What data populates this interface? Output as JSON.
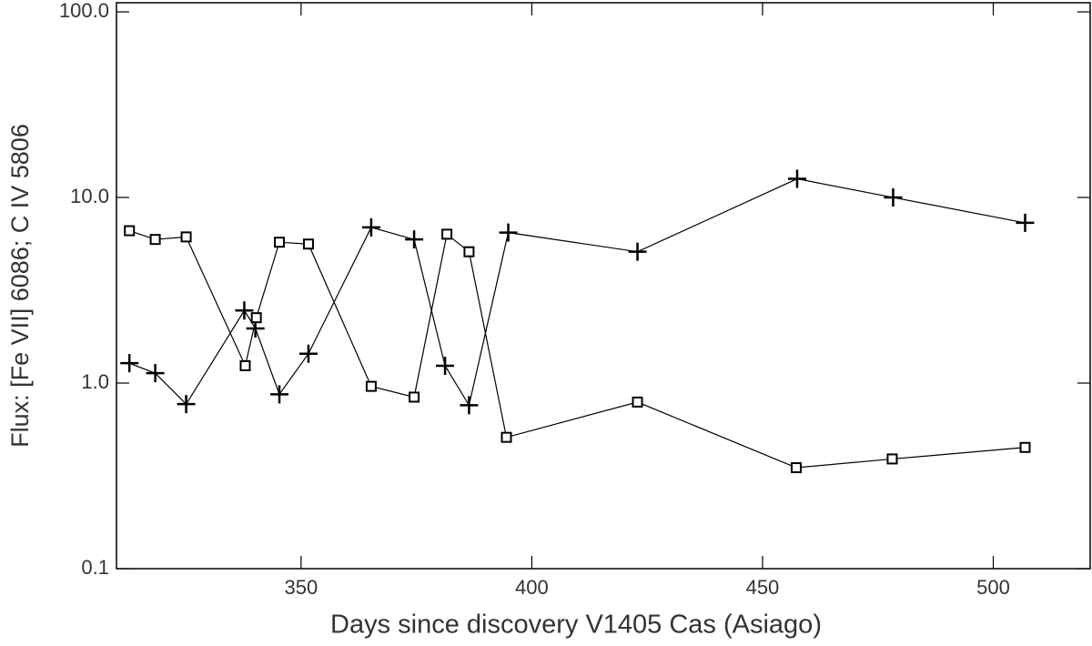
{
  "chart_data": {
    "type": "line",
    "xlabel": "Days since discovery V1405 Cas (Asiago)",
    "ylabel": "Flux: [Fe VII] 6086; C IV 5806",
    "xlim": [
      310,
      521
    ],
    "xticks": [
      350,
      400,
      450,
      500
    ],
    "ylim": [
      0.1,
      112
    ],
    "log_y": true,
    "yticks": [
      0.1,
      {
        "value": 1,
        "label": "1.0"
      },
      {
        "value": 10,
        "label": "10.0"
      },
      {
        "value": 100,
        "label": "100.0"
      }
    ],
    "series": [
      {
        "marker": "plus",
        "color": "#000000",
        "x": [
          312.8,
          318.4,
          325.1,
          337.7,
          340.1,
          345.3,
          351.6,
          365.2,
          374.5,
          381.2,
          386.4,
          394.9,
          422.9,
          457.5,
          478.3,
          506.9
        ],
        "values": [
          1.28,
          1.13,
          0.77,
          2.46,
          1.97,
          0.87,
          1.44,
          6.9,
          5.94,
          1.24,
          0.76,
          6.47,
          5.1,
          12.6,
          10,
          7.3
        ]
      },
      {
        "marker": "square",
        "color": "#000000",
        "x": [
          312.8,
          318.4,
          325.1,
          337.9,
          340.3,
          345.3,
          351.6,
          365.2,
          374.5,
          381.6,
          386.4,
          394.5,
          422.9,
          457.3,
          478.1,
          506.9
        ],
        "values": [
          6.62,
          5.94,
          6.13,
          1.24,
          2.25,
          5.74,
          5.61,
          0.96,
          0.84,
          6.34,
          5.1,
          0.51,
          0.79,
          0.35,
          0.39,
          0.45
        ]
      }
    ]
  }
}
